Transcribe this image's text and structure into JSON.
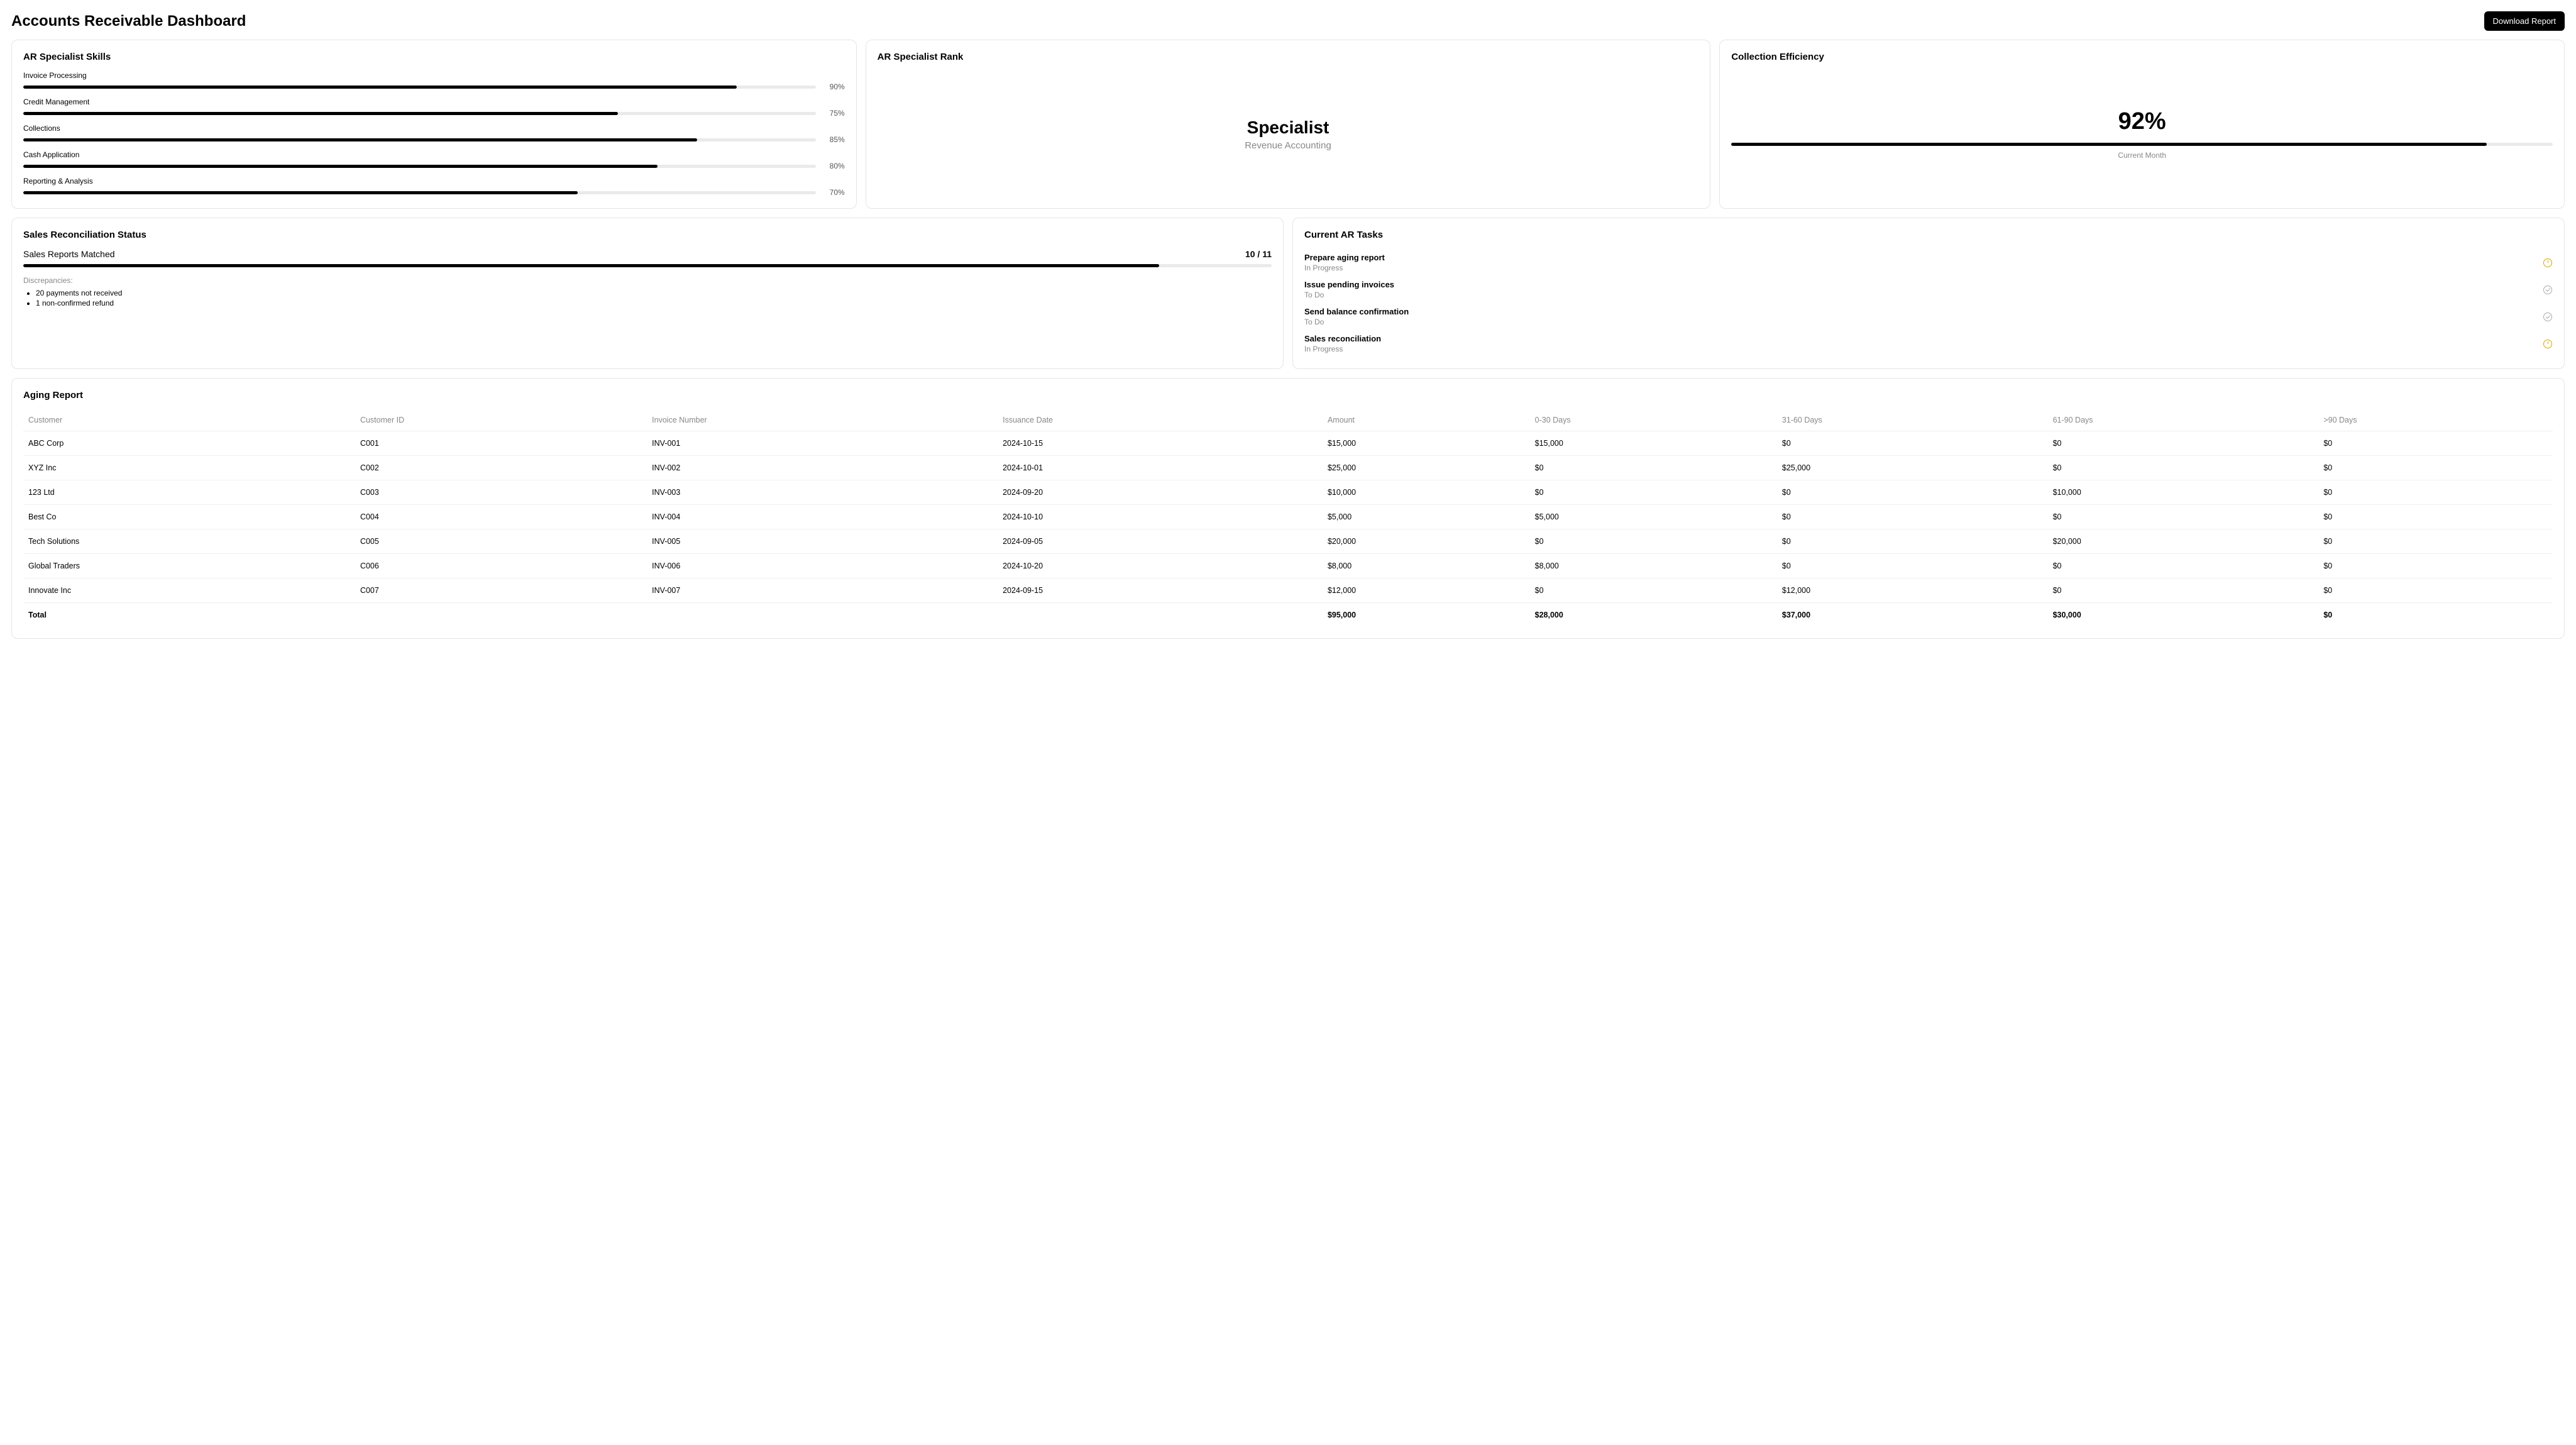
{
  "header": {
    "title": "Accounts Receivable Dashboard",
    "download_button": "Download Report"
  },
  "skills": {
    "title": "AR Specialist Skills",
    "items": [
      {
        "label": "Invoice Processing",
        "pct": 90
      },
      {
        "label": "Credit Management",
        "pct": 75
      },
      {
        "label": "Collections",
        "pct": 85
      },
      {
        "label": "Cash Application",
        "pct": 80
      },
      {
        "label": "Reporting & Analysis",
        "pct": 70
      }
    ]
  },
  "rank": {
    "title": "AR Specialist Rank",
    "value": "Specialist",
    "subtitle": "Revenue Accounting"
  },
  "efficiency": {
    "title": "Collection Efficiency",
    "pct": 92,
    "pct_display": "92%",
    "label": "Current Month"
  },
  "reconciliation": {
    "title": "Sales Reconciliation Status",
    "label": "Sales Reports Matched",
    "count": "10 / 11",
    "progress_pct": 91,
    "discrepancies_label": "Discrepancies:",
    "discrepancies": [
      "20 payments not received",
      "1 non-confirmed refund"
    ]
  },
  "tasks": {
    "title": "Current AR Tasks",
    "items": [
      {
        "name": "Prepare aging report",
        "status": "In Progress",
        "icon": "progress"
      },
      {
        "name": "Issue pending invoices",
        "status": "To Do",
        "icon": "todo"
      },
      {
        "name": "Send balance confirmation",
        "status": "To Do",
        "icon": "todo"
      },
      {
        "name": "Sales reconciliation",
        "status": "In Progress",
        "icon": "progress"
      }
    ]
  },
  "aging": {
    "title": "Aging Report",
    "columns": [
      "Customer",
      "Customer ID",
      "Invoice Number",
      "Issuance Date",
      "Amount",
      "0-30 Days",
      "31-60 Days",
      "61-90 Days",
      ">90 Days"
    ],
    "rows": [
      [
        "ABC Corp",
        "C001",
        "INV-001",
        "2024-10-15",
        "$15,000",
        "$15,000",
        "$0",
        "$0",
        "$0"
      ],
      [
        "XYZ Inc",
        "C002",
        "INV-002",
        "2024-10-01",
        "$25,000",
        "$0",
        "$25,000",
        "$0",
        "$0"
      ],
      [
        "123 Ltd",
        "C003",
        "INV-003",
        "2024-09-20",
        "$10,000",
        "$0",
        "$0",
        "$10,000",
        "$0"
      ],
      [
        "Best Co",
        "C004",
        "INV-004",
        "2024-10-10",
        "$5,000",
        "$5,000",
        "$0",
        "$0",
        "$0"
      ],
      [
        "Tech Solutions",
        "C005",
        "INV-005",
        "2024-09-05",
        "$20,000",
        "$0",
        "$0",
        "$20,000",
        "$0"
      ],
      [
        "Global Traders",
        "C006",
        "INV-006",
        "2024-10-20",
        "$8,000",
        "$8,000",
        "$0",
        "$0",
        "$0"
      ],
      [
        "Innovate Inc",
        "C007",
        "INV-007",
        "2024-09-15",
        "$12,000",
        "$0",
        "$12,000",
        "$0",
        "$0"
      ]
    ],
    "total_row": [
      "Total",
      "",
      "",
      "",
      "$95,000",
      "$28,000",
      "$37,000",
      "$30,000",
      "$0"
    ]
  },
  "colors": {
    "bar_bg": "#eaeaea",
    "bar_fill": "#000000",
    "border": "#e5e5e5",
    "muted": "#888888",
    "progress_icon": "#d9a400",
    "todo_icon": "#aaaaaa"
  }
}
